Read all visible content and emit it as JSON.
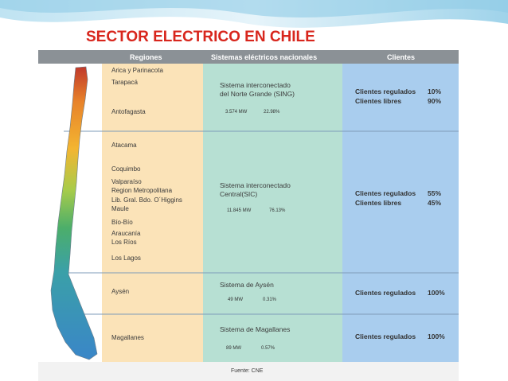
{
  "title": "SECTOR ELECTRICO EN CHILE",
  "table": {
    "headers": [
      "Regiones",
      "Sistemas eléctricos nacionales",
      "Clientes"
    ],
    "rows": [
      {
        "regions": [
          "Arica y Parinacota",
          "Tarapacá",
          "Antofagasta"
        ],
        "system": [
          "Sistema interconectado",
          "del Norte Grande (SING)"
        ],
        "capacity": "3.574 MW",
        "share": "22.98%",
        "clients": [
          [
            "Clientes regulados",
            "10%"
          ],
          [
            "Clientes libres",
            "90%"
          ]
        ]
      },
      {
        "regions": [
          "Atacama",
          "Coquimbo",
          "Valparaíso",
          "Region Metropolitana",
          "Lib. Gral. Bdo. O´Higgins",
          "Maule",
          "Bío-Bío",
          "Araucanía",
          "Los Ríos",
          "Los Lagos"
        ],
        "system": [
          "Sistema interconectado",
          "Central(SIC)"
        ],
        "capacity": "11.845 MW",
        "share": "76.13%",
        "clients": [
          [
            "Clientes regulados",
            "55%"
          ],
          [
            "Clientes libres",
            "45%"
          ]
        ]
      },
      {
        "regions": [
          "Aysén"
        ],
        "system": [
          "Sistema de Aysén"
        ],
        "capacity": "49 MW",
        "share": "0.31%",
        "clients": [
          [
            "Clientes regulados",
            "100%"
          ]
        ]
      },
      {
        "regions": [
          "Magallanes"
        ],
        "system": [
          "Sistema de Magallanes"
        ],
        "capacity": "89 MW",
        "share": "0.57%",
        "clients": [
          [
            "Clientes regulados",
            "100%"
          ]
        ]
      }
    ]
  },
  "source": "Fuente: CNE"
}
